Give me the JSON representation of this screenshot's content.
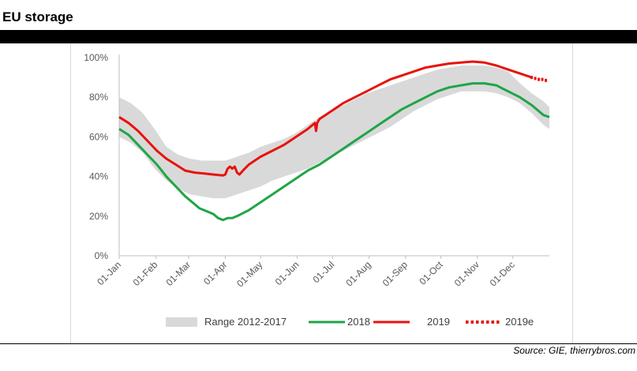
{
  "header": {
    "title": "EU storage"
  },
  "footer": {
    "source": "Source: GIE, thierrybros.com"
  },
  "colors": {
    "range": "#d9d9d9",
    "s2018": "#1fa547",
    "s2019": "#e8120c",
    "s2019e": "#e8120c",
    "axis": "#bfbfbf",
    "text": "#595959"
  },
  "chart_data": {
    "type": "line",
    "title": "",
    "xlabel": "",
    "ylabel": "",
    "ylim": [
      0,
      100
    ],
    "yticks": [
      "0%",
      "20%",
      "40%",
      "60%",
      "80%",
      "100%"
    ],
    "xticks": [
      "01-Jan",
      "01-Feb",
      "01-Mar",
      "01-Apr",
      "01-May",
      "01-Jun",
      "01-Jul",
      "01-Aug",
      "01-Sep",
      "01-Oct",
      "01-Nov",
      "01-Dec"
    ],
    "xtick_days": [
      0,
      31,
      59,
      90,
      120,
      151,
      181,
      212,
      243,
      273,
      304,
      334
    ],
    "xlim_days": [
      0,
      365
    ],
    "grid": false,
    "legend_position": "bottom",
    "range": {
      "name": "Range 2012-2017",
      "x_days": [
        0,
        10,
        20,
        30,
        40,
        50,
        60,
        70,
        80,
        90,
        100,
        110,
        120,
        130,
        140,
        150,
        160,
        170,
        180,
        190,
        200,
        210,
        220,
        230,
        240,
        250,
        260,
        270,
        280,
        290,
        300,
        310,
        320,
        330,
        340,
        350,
        360,
        365
      ],
      "upper": [
        80,
        77,
        72,
        64,
        55,
        51,
        49,
        48,
        48,
        48,
        50,
        52,
        55,
        57,
        59,
        62,
        66,
        70,
        73,
        76,
        79,
        82,
        84,
        86,
        88,
        90,
        92,
        94,
        95,
        96,
        96,
        96,
        95,
        93,
        87,
        82,
        78,
        75
      ],
      "lower": [
        60,
        57,
        52,
        44,
        38,
        34,
        31,
        30,
        29,
        29,
        31,
        33,
        35,
        38,
        40,
        42,
        44,
        47,
        50,
        53,
        56,
        59,
        62,
        65,
        69,
        73,
        76,
        79,
        81,
        83,
        83,
        83,
        82,
        80,
        77,
        72,
        66,
        64
      ]
    },
    "series": [
      {
        "name": "2018",
        "x_days": [
          0,
          8,
          16,
          24,
          32,
          40,
          48,
          56,
          64,
          68,
          72,
          80,
          84,
          88,
          92,
          96,
          100,
          110,
          120,
          130,
          140,
          150,
          160,
          170,
          180,
          190,
          200,
          210,
          220,
          230,
          240,
          250,
          260,
          270,
          280,
          290,
          300,
          305,
          310,
          320,
          330,
          340,
          350,
          360,
          365
        ],
        "values": [
          64,
          61,
          56,
          51,
          46,
          40,
          35,
          30,
          26,
          24,
          23,
          21,
          19,
          18,
          19,
          19,
          20,
          23,
          27,
          31,
          35,
          39,
          43,
          46,
          50,
          54,
          58,
          62,
          66,
          70,
          74,
          77,
          80,
          83,
          85,
          86,
          87,
          87,
          87,
          86,
          83,
          80,
          76,
          71,
          70
        ]
      },
      {
        "name": "2019",
        "x_days": [
          0,
          8,
          16,
          24,
          32,
          40,
          48,
          56,
          64,
          72,
          80,
          88,
          90,
          92,
          94,
          96,
          98,
          100,
          102,
          105,
          110,
          120,
          130,
          140,
          150,
          160,
          166,
          167,
          168,
          170,
          180,
          190,
          200,
          210,
          220,
          230,
          240,
          250,
          260,
          270,
          280,
          290,
          300,
          310,
          320,
          330,
          340,
          350
        ],
        "values": [
          70,
          67,
          63,
          58,
          53,
          49,
          46,
          43,
          42,
          41.5,
          41,
          40.5,
          41,
          44,
          45,
          44,
          45,
          42,
          41,
          43,
          46,
          50,
          53,
          56,
          60,
          64,
          67,
          63,
          67,
          69,
          73,
          77,
          80,
          83,
          86,
          89,
          91,
          93,
          95,
          96,
          97,
          97.5,
          98,
          97.5,
          96,
          94,
          92,
          90
        ]
      },
      {
        "name": "2019e",
        "x_days": [
          350,
          353,
          356,
          359,
          362
        ],
        "values": [
          90,
          89.5,
          89,
          89,
          88.5
        ]
      }
    ],
    "legend": [
      {
        "key": "range",
        "label": "Range 2012-2017"
      },
      {
        "key": "s2018",
        "label": "2018"
      },
      {
        "key": "s2019",
        "label": "2019"
      },
      {
        "key": "s2019e",
        "label": "2019e"
      }
    ]
  }
}
